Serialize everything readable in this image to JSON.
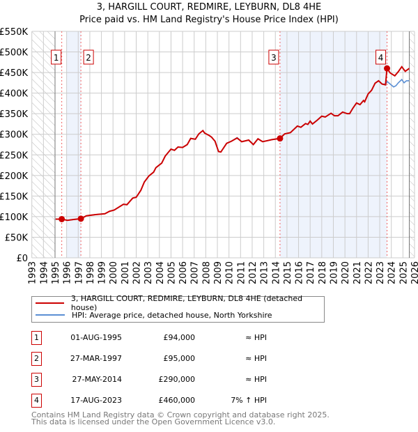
{
  "title_line1": "3, HARGILL COURT, REDMIRE, LEYBURN, DL8 4HE",
  "title_line2": "Price paid vs. HM Land Registry's House Price Index (HPI)",
  "chart_data": {
    "type": "line",
    "xlim": [
      1993,
      2026
    ],
    "ylim": [
      0,
      550000
    ],
    "yticks": [
      0,
      50000,
      100000,
      150000,
      200000,
      250000,
      300000,
      350000,
      400000,
      450000,
      500000,
      550000
    ],
    "ytick_labels": [
      "£0",
      "£50K",
      "£100K",
      "£150K",
      "£200K",
      "£250K",
      "£300K",
      "£350K",
      "£400K",
      "£450K",
      "£500K",
      "£550K"
    ],
    "xticks": [
      1993,
      1994,
      1995,
      1996,
      1997,
      1998,
      1999,
      2000,
      2001,
      2002,
      2003,
      2004,
      2005,
      2006,
      2007,
      2008,
      2009,
      2010,
      2011,
      2012,
      2013,
      2014,
      2015,
      2016,
      2017,
      2018,
      2019,
      2020,
      2021,
      2022,
      2023,
      2024,
      2025,
      2026
    ],
    "grid": true,
    "hatched_ranges": [
      [
        1993,
        1995
      ],
      [
        2025.55,
        2026
      ]
    ],
    "shaded_ranges": [
      [
        1996,
        1997.23
      ],
      [
        2014.4,
        2023.63
      ]
    ],
    "series": [
      {
        "name": "3, HARGILL COURT, REDMIRE, LEYBURN, DL8 4HE (detached house)",
        "color": "#cc0000",
        "x": [
          1995.05,
          1995.58,
          1996.06,
          1996.6,
          1997.23,
          1997.7,
          1998.5,
          1999.3,
          1999.7,
          2000.1,
          2000.9,
          2001.2,
          2001.7,
          2002.0,
          2002.4,
          2002.7,
          2003.1,
          2003.5,
          2003.7,
          2004.2,
          2004.5,
          2005.0,
          2005.3,
          2005.6,
          2006.0,
          2006.4,
          2006.7,
          2007.1,
          2007.4,
          2007.75,
          2007.9,
          2008.3,
          2008.5,
          2008.8,
          2009.1,
          2009.3,
          2009.8,
          2010.2,
          2010.7,
          2011.1,
          2011.7,
          2012.1,
          2012.5,
          2012.9,
          2013.7,
          2014.4,
          2014.8,
          2015.3,
          2015.9,
          2016.2,
          2016.6,
          2016.8,
          2017.0,
          2017.2,
          2017.6,
          2018.0,
          2018.3,
          2018.8,
          2019.1,
          2019.4,
          2019.8,
          2020.2,
          2020.4,
          2020.7,
          2021.0,
          2021.3,
          2021.6,
          2021.7,
          2022.0,
          2022.3,
          2022.6,
          2022.9,
          2023.2,
          2023.5,
          2023.6,
          2023.63,
          2023.9,
          2024.3,
          2024.6,
          2024.9,
          2025.2,
          2025.55
        ],
        "y": [
          94000,
          94000,
          91000,
          93000,
          95000,
          102000,
          105000,
          107000,
          113000,
          116000,
          130000,
          129000,
          145000,
          147000,
          164000,
          184000,
          199000,
          208000,
          219000,
          230000,
          247000,
          264000,
          261000,
          269000,
          268000,
          275000,
          290000,
          288000,
          301000,
          309000,
          303000,
          297000,
          293000,
          283000,
          258000,
          257000,
          278000,
          283000,
          291000,
          282000,
          286000,
          275000,
          289000,
          282000,
          287000,
          290000,
          301000,
          304000,
          320000,
          317000,
          326000,
          324000,
          332000,
          325000,
          334000,
          344000,
          342000,
          351000,
          345000,
          345000,
          354000,
          350000,
          350000,
          364000,
          376000,
          372000,
          382000,
          379000,
          398000,
          407000,
          424000,
          430000,
          422000,
          420000,
          452000,
          460000,
          449000,
          442000,
          452000,
          464000,
          453000,
          460000
        ]
      },
      {
        "name": "HPI: Average price, detached house, North Yorkshire",
        "color": "#5b8fd4",
        "x": [
          1995.05,
          1995.58,
          1996.06,
          1996.6,
          1997.23,
          1997.7,
          1998.5,
          1999.3,
          1999.7,
          2000.1,
          2000.9,
          2001.2,
          2001.7,
          2002.0,
          2002.4,
          2002.7,
          2003.1,
          2003.5,
          2003.7,
          2004.2,
          2004.5,
          2005.0,
          2005.3,
          2005.6,
          2006.0,
          2006.4,
          2006.7,
          2007.1,
          2007.4,
          2007.75,
          2007.9,
          2008.3,
          2008.5,
          2008.8,
          2009.1,
          2009.3,
          2009.8,
          2010.2,
          2010.7,
          2011.1,
          2011.7,
          2012.1,
          2012.5,
          2012.9,
          2013.7,
          2014.4,
          2014.8,
          2015.3,
          2015.9,
          2016.2,
          2016.6,
          2016.8,
          2017.0,
          2017.2,
          2017.6,
          2018.0,
          2018.3,
          2018.8,
          2019.1,
          2019.4,
          2019.8,
          2020.2,
          2020.4,
          2020.7,
          2021.0,
          2021.3,
          2021.6,
          2021.7,
          2022.0,
          2022.3,
          2022.6,
          2022.9,
          2023.2,
          2023.5,
          2023.65,
          2023.9,
          2024.2,
          2024.4,
          2024.6,
          2024.9,
          2025.1,
          2025.3,
          2025.55
        ],
        "y": [
          94000,
          94000,
          91000,
          93000,
          95000,
          102000,
          105000,
          107000,
          113000,
          116000,
          130000,
          129000,
          145000,
          147000,
          164000,
          184000,
          199000,
          208000,
          219000,
          230000,
          247000,
          264000,
          261000,
          269000,
          268000,
          275000,
          290000,
          288000,
          301000,
          309000,
          303000,
          297000,
          293000,
          283000,
          258000,
          257000,
          278000,
          283000,
          292000,
          282000,
          286000,
          275000,
          289000,
          282000,
          287000,
          290000,
          301000,
          304000,
          320000,
          317000,
          326000,
          324000,
          332000,
          325000,
          334000,
          344000,
          342000,
          351000,
          345000,
          345000,
          354000,
          350000,
          350000,
          364000,
          376000,
          372000,
          382000,
          379000,
          398000,
          407000,
          424000,
          430000,
          422000,
          422000,
          428000,
          422000,
          415000,
          418000,
          425000,
          433000,
          425000,
          430000,
          430000
        ]
      }
    ],
    "sales": [
      {
        "label": "1",
        "x": 1995.58,
        "y": 94000
      },
      {
        "label": "2",
        "x": 1997.23,
        "y": 95000
      },
      {
        "label": "3",
        "x": 2014.4,
        "y": 290000
      },
      {
        "label": "4",
        "x": 2023.63,
        "y": 460000
      }
    ]
  },
  "legend": {
    "property": "3, HARGILL COURT, REDMIRE, LEYBURN, DL8 4HE (detached house)",
    "hpi": "HPI: Average price, detached house, North Yorkshire"
  },
  "transactions": [
    {
      "num": "1",
      "date": "01-AUG-1995",
      "price": "£94,000",
      "relation": "≈ HPI"
    },
    {
      "num": "2",
      "date": "27-MAR-1997",
      "price": "£95,000",
      "relation": "≈ HPI"
    },
    {
      "num": "3",
      "date": "27-MAY-2014",
      "price": "£290,000",
      "relation": "≈ HPI"
    },
    {
      "num": "4",
      "date": "17-AUG-2023",
      "price": "£460,000",
      "relation": "7% ↑ HPI"
    }
  ],
  "footer_line1": "Contains HM Land Registry data © Crown copyright and database right 2025.",
  "footer_line2": "This data is licensed under the Open Government Licence v3.0."
}
